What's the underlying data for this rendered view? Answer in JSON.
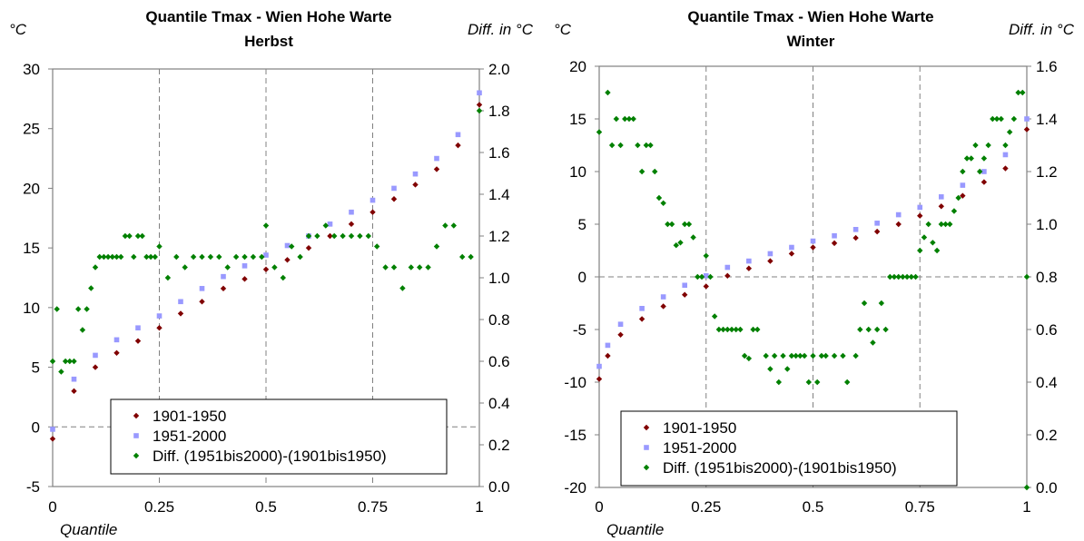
{
  "chart_data": [
    {
      "type": "scatter",
      "title_line1": "Quantile Tmax - Wien Hohe Warte",
      "title_line2": "Herbst",
      "ylabel_left": "°C",
      "ylabel_right": "Diff. in °C",
      "xlabel": "Quantile",
      "xlim": [
        0,
        1
      ],
      "ylim_left": [
        -5,
        30
      ],
      "ylim_right": [
        0,
        2
      ],
      "x_ticks": [
        "0",
        "0.25",
        "0.5",
        "0.75",
        "1"
      ],
      "y_ticks_left": [
        "30",
        "25",
        "20",
        "15",
        "10",
        "5",
        "0",
        "-5"
      ],
      "y_ticks_right": [
        "2.0",
        "1.8",
        "1.6",
        "1.4",
        "1.2",
        "1.0",
        "0.8",
        "0.6",
        "0.4",
        "0.2",
        "0.0"
      ],
      "grid": "dashed vertical at 0.25, 0.5, 0.75; dashed horizontal at 0",
      "legend_position": "bottom",
      "series": [
        {
          "name": "1901-1950",
          "axis": "left",
          "color": "#800000",
          "marker": "diamond",
          "points": [
            [
              0.0,
              -1.0
            ],
            [
              0.05,
              3.0
            ],
            [
              0.1,
              5.0
            ],
            [
              0.15,
              6.2
            ],
            [
              0.2,
              7.2
            ],
            [
              0.25,
              8.3
            ],
            [
              0.3,
              9.5
            ],
            [
              0.35,
              10.5
            ],
            [
              0.4,
              11.6
            ],
            [
              0.45,
              12.4
            ],
            [
              0.5,
              13.2
            ],
            [
              0.55,
              14.0
            ],
            [
              0.6,
              15.0
            ],
            [
              0.65,
              16.0
            ],
            [
              0.7,
              17.0
            ],
            [
              0.75,
              18.0
            ],
            [
              0.8,
              19.1
            ],
            [
              0.85,
              20.3
            ],
            [
              0.9,
              21.6
            ],
            [
              0.95,
              23.6
            ],
            [
              1.0,
              27.0
            ]
          ]
        },
        {
          "name": "1951-2000",
          "axis": "left",
          "color": "#9999ff",
          "marker": "square",
          "points": [
            [
              0.0,
              -0.2
            ],
            [
              0.05,
              4.0
            ],
            [
              0.1,
              6.0
            ],
            [
              0.15,
              7.3
            ],
            [
              0.2,
              8.3
            ],
            [
              0.25,
              9.3
            ],
            [
              0.3,
              10.5
            ],
            [
              0.35,
              11.6
            ],
            [
              0.4,
              12.6
            ],
            [
              0.45,
              13.5
            ],
            [
              0.5,
              14.4
            ],
            [
              0.55,
              15.2
            ],
            [
              0.6,
              16.0
            ],
            [
              0.65,
              17.0
            ],
            [
              0.7,
              18.0
            ],
            [
              0.75,
              19.0
            ],
            [
              0.8,
              20.0
            ],
            [
              0.85,
              21.2
            ],
            [
              0.9,
              22.5
            ],
            [
              0.95,
              24.5
            ],
            [
              1.0,
              28.0
            ]
          ]
        },
        {
          "name": "Diff. (1951bis2000)-(1901bis1950)",
          "axis": "right",
          "color": "#008000",
          "marker": "diamond",
          "points": [
            [
              0.0,
              0.6
            ],
            [
              0.01,
              0.85
            ],
            [
              0.02,
              0.55
            ],
            [
              0.03,
              0.6
            ],
            [
              0.04,
              0.6
            ],
            [
              0.05,
              0.6
            ],
            [
              0.06,
              0.85
            ],
            [
              0.07,
              0.75
            ],
            [
              0.08,
              0.85
            ],
            [
              0.09,
              0.95
            ],
            [
              0.1,
              1.05
            ],
            [
              0.11,
              1.1
            ],
            [
              0.12,
              1.1
            ],
            [
              0.13,
              1.1
            ],
            [
              0.14,
              1.1
            ],
            [
              0.15,
              1.1
            ],
            [
              0.16,
              1.1
            ],
            [
              0.17,
              1.2
            ],
            [
              0.18,
              1.2
            ],
            [
              0.19,
              1.1
            ],
            [
              0.2,
              1.2
            ],
            [
              0.21,
              1.2
            ],
            [
              0.22,
              1.1
            ],
            [
              0.23,
              1.1
            ],
            [
              0.24,
              1.1
            ],
            [
              0.25,
              1.15
            ],
            [
              0.27,
              1.0
            ],
            [
              0.29,
              1.1
            ],
            [
              0.31,
              1.05
            ],
            [
              0.33,
              1.1
            ],
            [
              0.35,
              1.1
            ],
            [
              0.37,
              1.1
            ],
            [
              0.39,
              1.1
            ],
            [
              0.41,
              1.05
            ],
            [
              0.43,
              1.1
            ],
            [
              0.45,
              1.1
            ],
            [
              0.47,
              1.1
            ],
            [
              0.49,
              1.1
            ],
            [
              0.5,
              1.25
            ],
            [
              0.52,
              1.05
            ],
            [
              0.54,
              1.0
            ],
            [
              0.56,
              1.15
            ],
            [
              0.58,
              1.1
            ],
            [
              0.6,
              1.2
            ],
            [
              0.62,
              1.2
            ],
            [
              0.64,
              1.25
            ],
            [
              0.66,
              1.2
            ],
            [
              0.68,
              1.2
            ],
            [
              0.7,
              1.2
            ],
            [
              0.72,
              1.2
            ],
            [
              0.74,
              1.2
            ],
            [
              0.76,
              1.15
            ],
            [
              0.78,
              1.05
            ],
            [
              0.8,
              1.05
            ],
            [
              0.82,
              0.95
            ],
            [
              0.84,
              1.05
            ],
            [
              0.86,
              1.05
            ],
            [
              0.88,
              1.05
            ],
            [
              0.9,
              1.15
            ],
            [
              0.92,
              1.25
            ],
            [
              0.94,
              1.25
            ],
            [
              0.96,
              1.1
            ],
            [
              0.98,
              1.1
            ],
            [
              1.0,
              1.8
            ]
          ]
        }
      ]
    },
    {
      "type": "scatter",
      "title_line1": "Quantile Tmax - Wien Hohe Warte",
      "title_line2": "Winter",
      "ylabel_left": "°C",
      "ylabel_right": "Diff. in °C",
      "xlabel": "Quantile",
      "xlim": [
        0,
        1
      ],
      "ylim_left": [
        -20,
        20
      ],
      "ylim_right": [
        0,
        1.6
      ],
      "x_ticks": [
        "0",
        "0.25",
        "0.5",
        "0.75",
        "1"
      ],
      "y_ticks_left": [
        "20",
        "15",
        "10",
        "5",
        "0",
        "-5",
        "-10",
        "-15",
        "-20"
      ],
      "y_ticks_right": [
        "1.6",
        "1.4",
        "1.2",
        "1.0",
        "0.8",
        "0.6",
        "0.4",
        "0.2",
        "0.0"
      ],
      "grid": "dashed vertical at 0.25, 0.5, 0.75; dashed horizontal at 0",
      "legend_position": "bottom",
      "series": [
        {
          "name": "1901-1950",
          "axis": "left",
          "color": "#800000",
          "marker": "diamond",
          "points": [
            [
              0.0,
              -9.7
            ],
            [
              0.02,
              -7.5
            ],
            [
              0.05,
              -5.5
            ],
            [
              0.1,
              -4.0
            ],
            [
              0.15,
              -2.8
            ],
            [
              0.2,
              -1.7
            ],
            [
              0.25,
              -0.9
            ],
            [
              0.3,
              0.1
            ],
            [
              0.35,
              0.8
            ],
            [
              0.4,
              1.5
            ],
            [
              0.45,
              2.2
            ],
            [
              0.5,
              2.8
            ],
            [
              0.55,
              3.2
            ],
            [
              0.6,
              3.7
            ],
            [
              0.65,
              4.3
            ],
            [
              0.7,
              5.0
            ],
            [
              0.75,
              5.8
            ],
            [
              0.8,
              6.7
            ],
            [
              0.85,
              7.7
            ],
            [
              0.9,
              9.0
            ],
            [
              0.95,
              10.3
            ],
            [
              1.0,
              14.0
            ]
          ]
        },
        {
          "name": "1951-2000",
          "axis": "left",
          "color": "#9999ff",
          "marker": "square",
          "points": [
            [
              0.0,
              -8.5
            ],
            [
              0.02,
              -6.5
            ],
            [
              0.05,
              -4.5
            ],
            [
              0.1,
              -3.0
            ],
            [
              0.15,
              -1.9
            ],
            [
              0.2,
              -0.8
            ],
            [
              0.25,
              0.1
            ],
            [
              0.3,
              0.9
            ],
            [
              0.35,
              1.5
            ],
            [
              0.4,
              2.2
            ],
            [
              0.45,
              2.8
            ],
            [
              0.5,
              3.4
            ],
            [
              0.55,
              3.9
            ],
            [
              0.6,
              4.5
            ],
            [
              0.65,
              5.1
            ],
            [
              0.7,
              5.9
            ],
            [
              0.75,
              6.6
            ],
            [
              0.8,
              7.6
            ],
            [
              0.85,
              8.7
            ],
            [
              0.9,
              10.0
            ],
            [
              0.95,
              11.6
            ],
            [
              1.0,
              15.0
            ]
          ]
        },
        {
          "name": "Diff. (1951bis2000)-(1901bis1950)",
          "axis": "right",
          "color": "#008000",
          "marker": "diamond",
          "points": [
            [
              0.0,
              1.35
            ],
            [
              0.02,
              1.5
            ],
            [
              0.03,
              1.3
            ],
            [
              0.04,
              1.4
            ],
            [
              0.05,
              1.3
            ],
            [
              0.06,
              1.4
            ],
            [
              0.07,
              1.4
            ],
            [
              0.08,
              1.4
            ],
            [
              0.09,
              1.3
            ],
            [
              0.1,
              1.2
            ],
            [
              0.11,
              1.3
            ],
            [
              0.12,
              1.3
            ],
            [
              0.13,
              1.2
            ],
            [
              0.14,
              1.1
            ],
            [
              0.15,
              1.08
            ],
            [
              0.16,
              1.0
            ],
            [
              0.17,
              1.0
            ],
            [
              0.18,
              0.92
            ],
            [
              0.19,
              0.93
            ],
            [
              0.2,
              1.0
            ],
            [
              0.21,
              1.0
            ],
            [
              0.22,
              0.95
            ],
            [
              0.23,
              0.8
            ],
            [
              0.24,
              0.8
            ],
            [
              0.25,
              0.88
            ],
            [
              0.26,
              0.8
            ],
            [
              0.27,
              0.65
            ],
            [
              0.28,
              0.6
            ],
            [
              0.29,
              0.6
            ],
            [
              0.3,
              0.6
            ],
            [
              0.31,
              0.6
            ],
            [
              0.32,
              0.6
            ],
            [
              0.33,
              0.6
            ],
            [
              0.34,
              0.5
            ],
            [
              0.35,
              0.49
            ],
            [
              0.36,
              0.6
            ],
            [
              0.37,
              0.6
            ],
            [
              0.39,
              0.5
            ],
            [
              0.4,
              0.45
            ],
            [
              0.41,
              0.5
            ],
            [
              0.42,
              0.4
            ],
            [
              0.43,
              0.5
            ],
            [
              0.44,
              0.45
            ],
            [
              0.45,
              0.5
            ],
            [
              0.46,
              0.5
            ],
            [
              0.47,
              0.5
            ],
            [
              0.48,
              0.5
            ],
            [
              0.49,
              0.4
            ],
            [
              0.5,
              0.5
            ],
            [
              0.51,
              0.4
            ],
            [
              0.52,
              0.5
            ],
            [
              0.53,
              0.5
            ],
            [
              0.55,
              0.5
            ],
            [
              0.57,
              0.5
            ],
            [
              0.58,
              0.4
            ],
            [
              0.6,
              0.5
            ],
            [
              0.61,
              0.6
            ],
            [
              0.62,
              0.7
            ],
            [
              0.63,
              0.6
            ],
            [
              0.64,
              0.55
            ],
            [
              0.65,
              0.6
            ],
            [
              0.66,
              0.7
            ],
            [
              0.67,
              0.6
            ],
            [
              0.68,
              0.8
            ],
            [
              0.69,
              0.8
            ],
            [
              0.7,
              0.8
            ],
            [
              0.71,
              0.8
            ],
            [
              0.72,
              0.8
            ],
            [
              0.73,
              0.8
            ],
            [
              0.74,
              0.8
            ],
            [
              0.75,
              0.9
            ],
            [
              0.76,
              0.95
            ],
            [
              0.77,
              1.0
            ],
            [
              0.78,
              0.93
            ],
            [
              0.79,
              0.9
            ],
            [
              0.8,
              1.0
            ],
            [
              0.81,
              1.0
            ],
            [
              0.82,
              1.0
            ],
            [
              0.83,
              1.05
            ],
            [
              0.84,
              1.1
            ],
            [
              0.85,
              1.2
            ],
            [
              0.86,
              1.25
            ],
            [
              0.87,
              1.25
            ],
            [
              0.88,
              1.3
            ],
            [
              0.89,
              1.2
            ],
            [
              0.9,
              1.25
            ],
            [
              0.91,
              1.3
            ],
            [
              0.92,
              1.4
            ],
            [
              0.93,
              1.4
            ],
            [
              0.94,
              1.4
            ],
            [
              0.95,
              1.3
            ],
            [
              0.96,
              1.35
            ],
            [
              0.97,
              1.4
            ],
            [
              0.98,
              1.5
            ],
            [
              0.99,
              1.5
            ],
            [
              1.0,
              0.8
            ],
            [
              1.0,
              0.0
            ]
          ]
        }
      ]
    }
  ]
}
